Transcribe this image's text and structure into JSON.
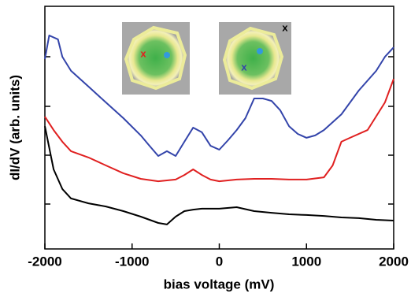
{
  "chart_data": {
    "type": "line",
    "xlabel": "bias voltage (mV)",
    "ylabel": "dI/dV (arb. units)",
    "xlim": [
      -2000,
      2000
    ],
    "xticks": [
      -2000,
      -1000,
      0,
      1000,
      2000
    ],
    "ylim": [
      0,
      100
    ],
    "series": [
      {
        "color": "#3344aa",
        "x": [
          -2000,
          -1950,
          -1850,
          -1800,
          -1700,
          -1500,
          -1300,
          -1100,
          -900,
          -800,
          -700,
          -600,
          -500,
          -400,
          -300,
          -200,
          -100,
          0,
          100,
          200,
          300,
          400,
          500,
          600,
          700,
          800,
          900,
          1000,
          1100,
          1200,
          1400,
          1600,
          1800,
          1900,
          2000
        ],
        "values": [
          78.2,
          88,
          86.4,
          79.2,
          73.4,
          66.9,
          60.4,
          53.9,
          46.8,
          42.5,
          38.3,
          40.3,
          38.3,
          44.2,
          50,
          48.1,
          42.5,
          40.9,
          44.8,
          49,
          53.9,
          62,
          62,
          61,
          57.1,
          50.6,
          47.4,
          45.8,
          46.8,
          49,
          55.5,
          65.3,
          73.4,
          79.2,
          83.1
        ]
      },
      {
        "color": "#e02020",
        "x": [
          -2000,
          -1900,
          -1800,
          -1700,
          -1500,
          -1300,
          -1100,
          -900,
          -700,
          -500,
          -400,
          -300,
          -200,
          -100,
          0,
          200,
          400,
          600,
          800,
          1000,
          1200,
          1300,
          1400,
          1500,
          1700,
          1900,
          2000
        ],
        "values": [
          54.5,
          49,
          44.2,
          40.3,
          37.7,
          34.4,
          31.2,
          28.9,
          27.9,
          28.6,
          30.5,
          32.8,
          30.5,
          28.6,
          27.9,
          28.6,
          28.9,
          28.9,
          28.6,
          28.6,
          29.5,
          34.4,
          44.2,
          45.8,
          49,
          60.4,
          70.1
        ]
      },
      {
        "color": "#000000",
        "x": [
          -2000,
          -1900,
          -1800,
          -1700,
          -1500,
          -1300,
          -1100,
          -900,
          -700,
          -600,
          -500,
          -400,
          -300,
          -200,
          0,
          200,
          400,
          600,
          800,
          1000,
          1200,
          1400,
          1600,
          1800,
          2000
        ],
        "values": [
          50.6,
          32.8,
          24.7,
          20.8,
          18.8,
          17.5,
          15.6,
          13.3,
          10.7,
          10.1,
          13.3,
          15.6,
          16.2,
          16.6,
          16.6,
          17.2,
          15.6,
          14.9,
          14.3,
          14,
          13.6,
          13,
          12.7,
          12,
          11.7
        ]
      }
    ],
    "annotations": [
      {
        "text": "x",
        "color": "#e02020"
      },
      {
        "text": "x",
        "color": "#3344aa"
      },
      {
        "text": "x",
        "color": "#000000"
      }
    ]
  }
}
